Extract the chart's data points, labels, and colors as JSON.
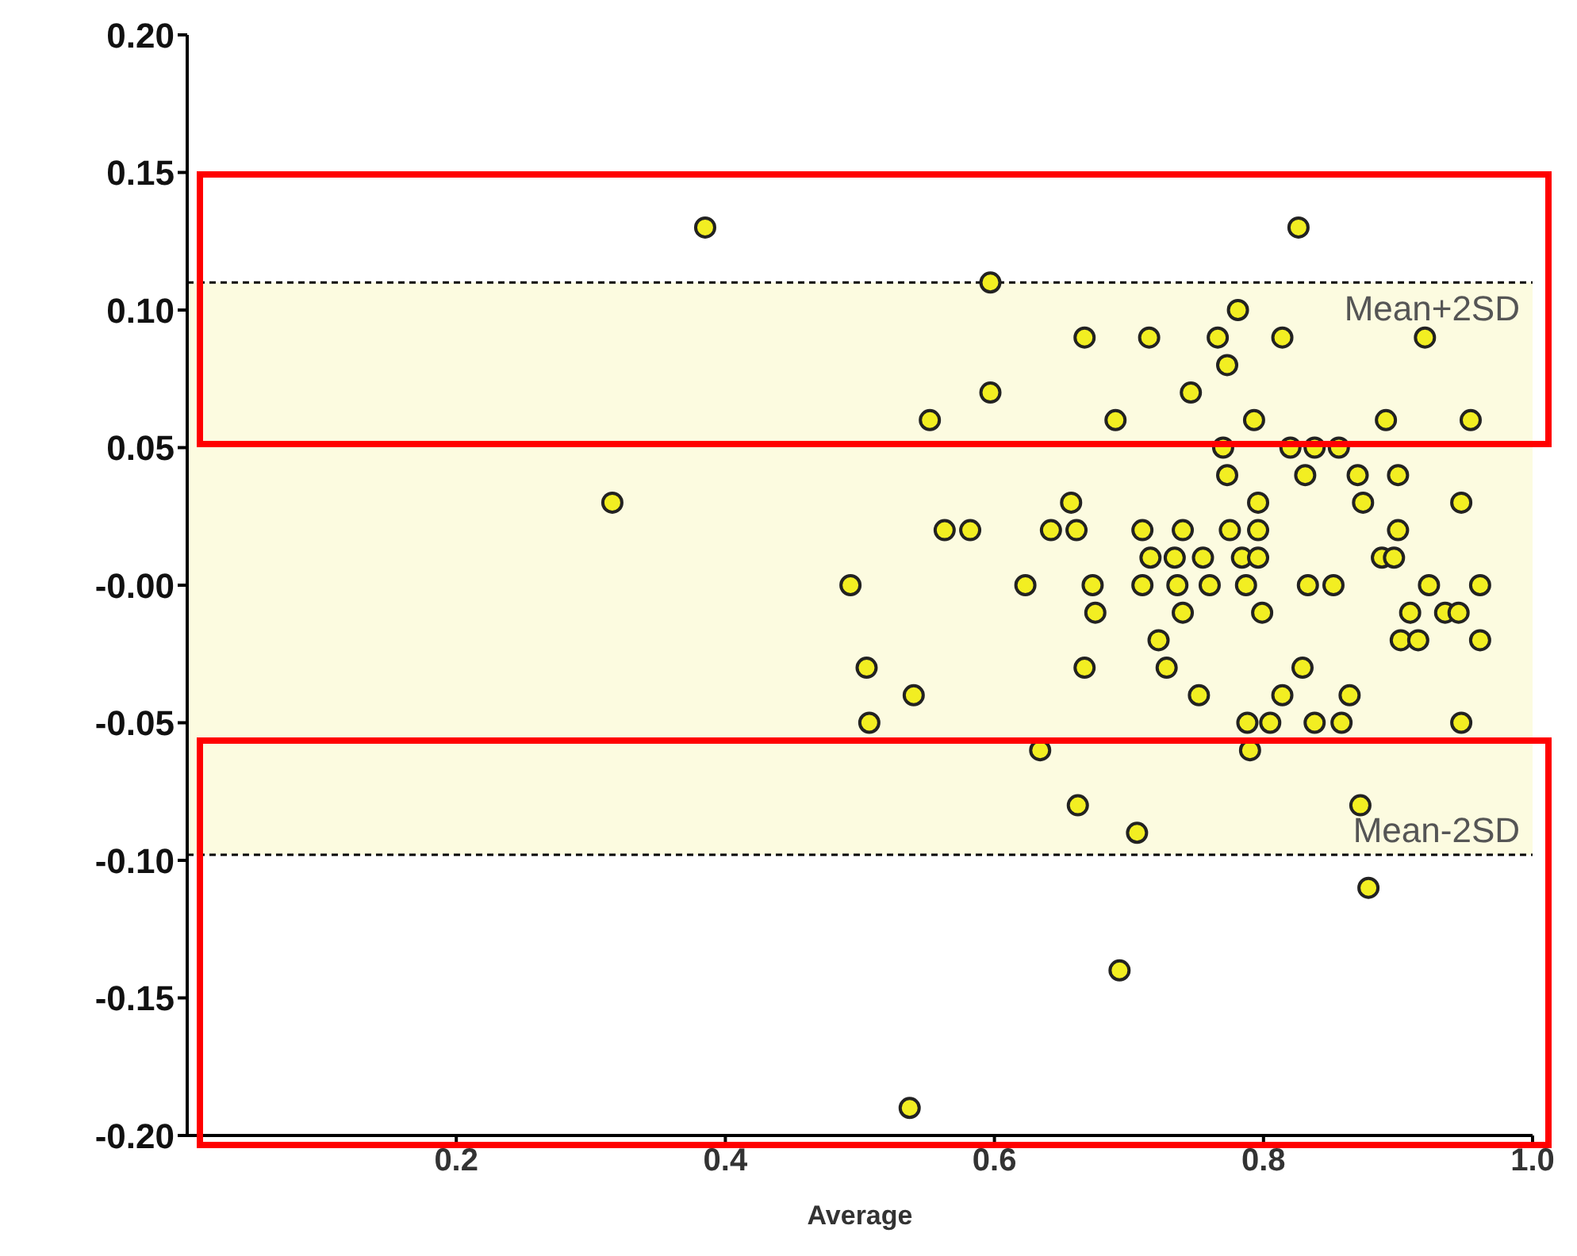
{
  "chart_data": {
    "type": "scatter",
    "xlabel": "Average",
    "xlim": [
      0,
      1.0
    ],
    "xticks": [
      0.2,
      0.4,
      0.6,
      0.8,
      {
        "value": 1.0,
        "label": "1.0"
      }
    ],
    "ylim": [
      -0.2,
      0.2
    ],
    "yticks": [
      {
        "value": -0.2,
        "label": "-0.20"
      },
      {
        "value": -0.15,
        "label": "-0.15"
      },
      {
        "value": -0.1,
        "label": "-0.10"
      },
      {
        "value": -0.05,
        "label": "-0.05"
      },
      {
        "value": 0,
        "label": "-0.00"
      },
      {
        "value": 0.05,
        "label": "0.05"
      },
      {
        "value": 0.1,
        "label": "0.10"
      },
      {
        "value": 0.15,
        "label": "0.15"
      },
      {
        "value": 0.2,
        "label": "0.20"
      }
    ],
    "grid": false,
    "legend": false,
    "marker": "circle",
    "bands": [
      {
        "axis": "y",
        "from": -0.098,
        "to": 0.11,
        "color": "#fcfbe0"
      }
    ],
    "ref_lines": [
      {
        "axis": "y",
        "value": 0.11,
        "label": "Mean+2SD",
        "line_style": "dashed",
        "color": "#000000"
      },
      {
        "axis": "y",
        "value": -0.098,
        "label": "Mean-2SD",
        "line_style": "dashed",
        "color": "#000000"
      }
    ],
    "series": [
      {
        "color": "#f2ee22",
        "x": [
          0.385,
          0.316,
          0.493,
          0.505,
          0.507,
          0.54,
          0.537,
          0.552,
          0.563,
          0.582,
          0.597,
          0.597,
          0.623,
          0.634,
          0.642,
          0.657,
          0.661,
          0.662,
          0.667,
          0.667,
          0.673,
          0.675,
          0.69,
          0.693,
          0.706,
          0.715,
          0.71,
          0.71,
          0.716,
          0.722,
          0.728,
          0.734,
          0.736,
          0.74,
          0.74,
          0.746,
          0.752,
          0.755,
          0.76,
          0.766,
          0.77,
          0.773,
          0.773,
          0.775,
          0.781,
          0.784,
          0.787,
          0.788,
          0.79,
          0.793,
          0.796,
          0.796,
          0.796,
          0.799,
          0.805,
          0.814,
          0.814,
          0.82,
          0.826,
          0.829,
          0.831,
          0.833,
          0.838,
          0.838,
          0.852,
          0.856,
          0.858,
          0.864,
          0.87,
          0.874,
          0.872,
          0.878,
          0.888,
          0.891,
          0.897,
          0.9,
          0.9,
          0.902,
          0.909,
          0.915,
          0.92,
          0.923,
          0.935,
          0.945,
          0.947,
          0.947,
          0.954,
          0.961,
          0.961
        ],
        "values": [
          0.13,
          0.03,
          0.0,
          -0.03,
          -0.05,
          -0.04,
          -0.19,
          0.06,
          0.02,
          0.02,
          0.11,
          0.07,
          0.0,
          -0.06,
          0.02,
          0.03,
          0.02,
          -0.08,
          0.09,
          -0.03,
          0.0,
          -0.01,
          0.06,
          -0.14,
          -0.09,
          0.09,
          0.02,
          0.0,
          0.01,
          -0.02,
          -0.03,
          0.01,
          0.0,
          0.02,
          -0.01,
          0.07,
          -0.04,
          0.01,
          0.0,
          0.09,
          0.05,
          0.08,
          0.04,
          0.02,
          0.1,
          0.01,
          0.0,
          -0.05,
          -0.06,
          0.06,
          0.03,
          0.02,
          0.01,
          -0.01,
          -0.05,
          -0.04,
          0.09,
          0.05,
          0.13,
          -0.03,
          0.04,
          0.0,
          0.05,
          -0.05,
          0.0,
          0.05,
          -0.05,
          -0.04,
          0.04,
          0.03,
          -0.08,
          -0.11,
          0.01,
          0.06,
          0.01,
          0.04,
          0.02,
          -0.02,
          -0.01,
          -0.02,
          0.09,
          0.0,
          -0.01,
          -0.01,
          0.03,
          -0.05,
          0.06,
          0.0,
          -0.02
        ]
      }
    ]
  }
}
